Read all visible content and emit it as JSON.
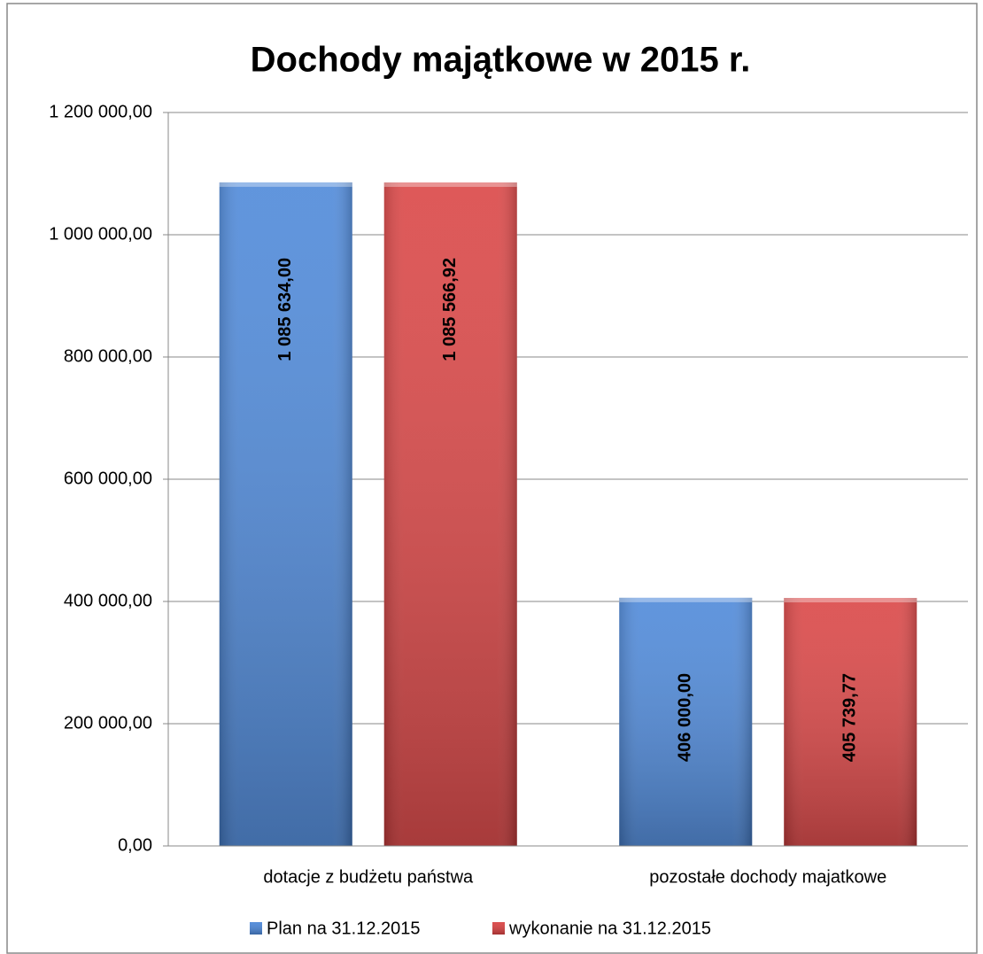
{
  "chart_data": {
    "type": "bar",
    "title": "Dochody majątkowe w 2015 r.",
    "categories": [
      "dotacje z budżetu państwa",
      "pozostałe dochody majatkowe"
    ],
    "series": [
      {
        "name": "Plan na 31.12.2015",
        "color": "#4a86d8",
        "values": [
          1085634.0,
          406000.0
        ],
        "value_labels": [
          "1 085 634,00",
          "406 000,00"
        ]
      },
      {
        "name": "wykonanie na 31.12.2015",
        "color": "#d94141",
        "values": [
          1085566.92,
          405739.77
        ],
        "value_labels": [
          "1 085 566,92",
          "405 739,77"
        ]
      }
    ],
    "ylim": [
      0,
      1200000
    ],
    "yticks": [
      {
        "value": 0,
        "label": "0,00"
      },
      {
        "value": 200000,
        "label": "200 000,00"
      },
      {
        "value": 400000,
        "label": "400 000,00"
      },
      {
        "value": 600000,
        "label": "600 000,00"
      },
      {
        "value": 800000,
        "label": "800 000,00"
      },
      {
        "value": 1000000,
        "label": "1 000 000,00"
      },
      {
        "value": 1200000,
        "label": "1 200 000,00"
      }
    ],
    "grid": true,
    "legend": "bottom"
  }
}
